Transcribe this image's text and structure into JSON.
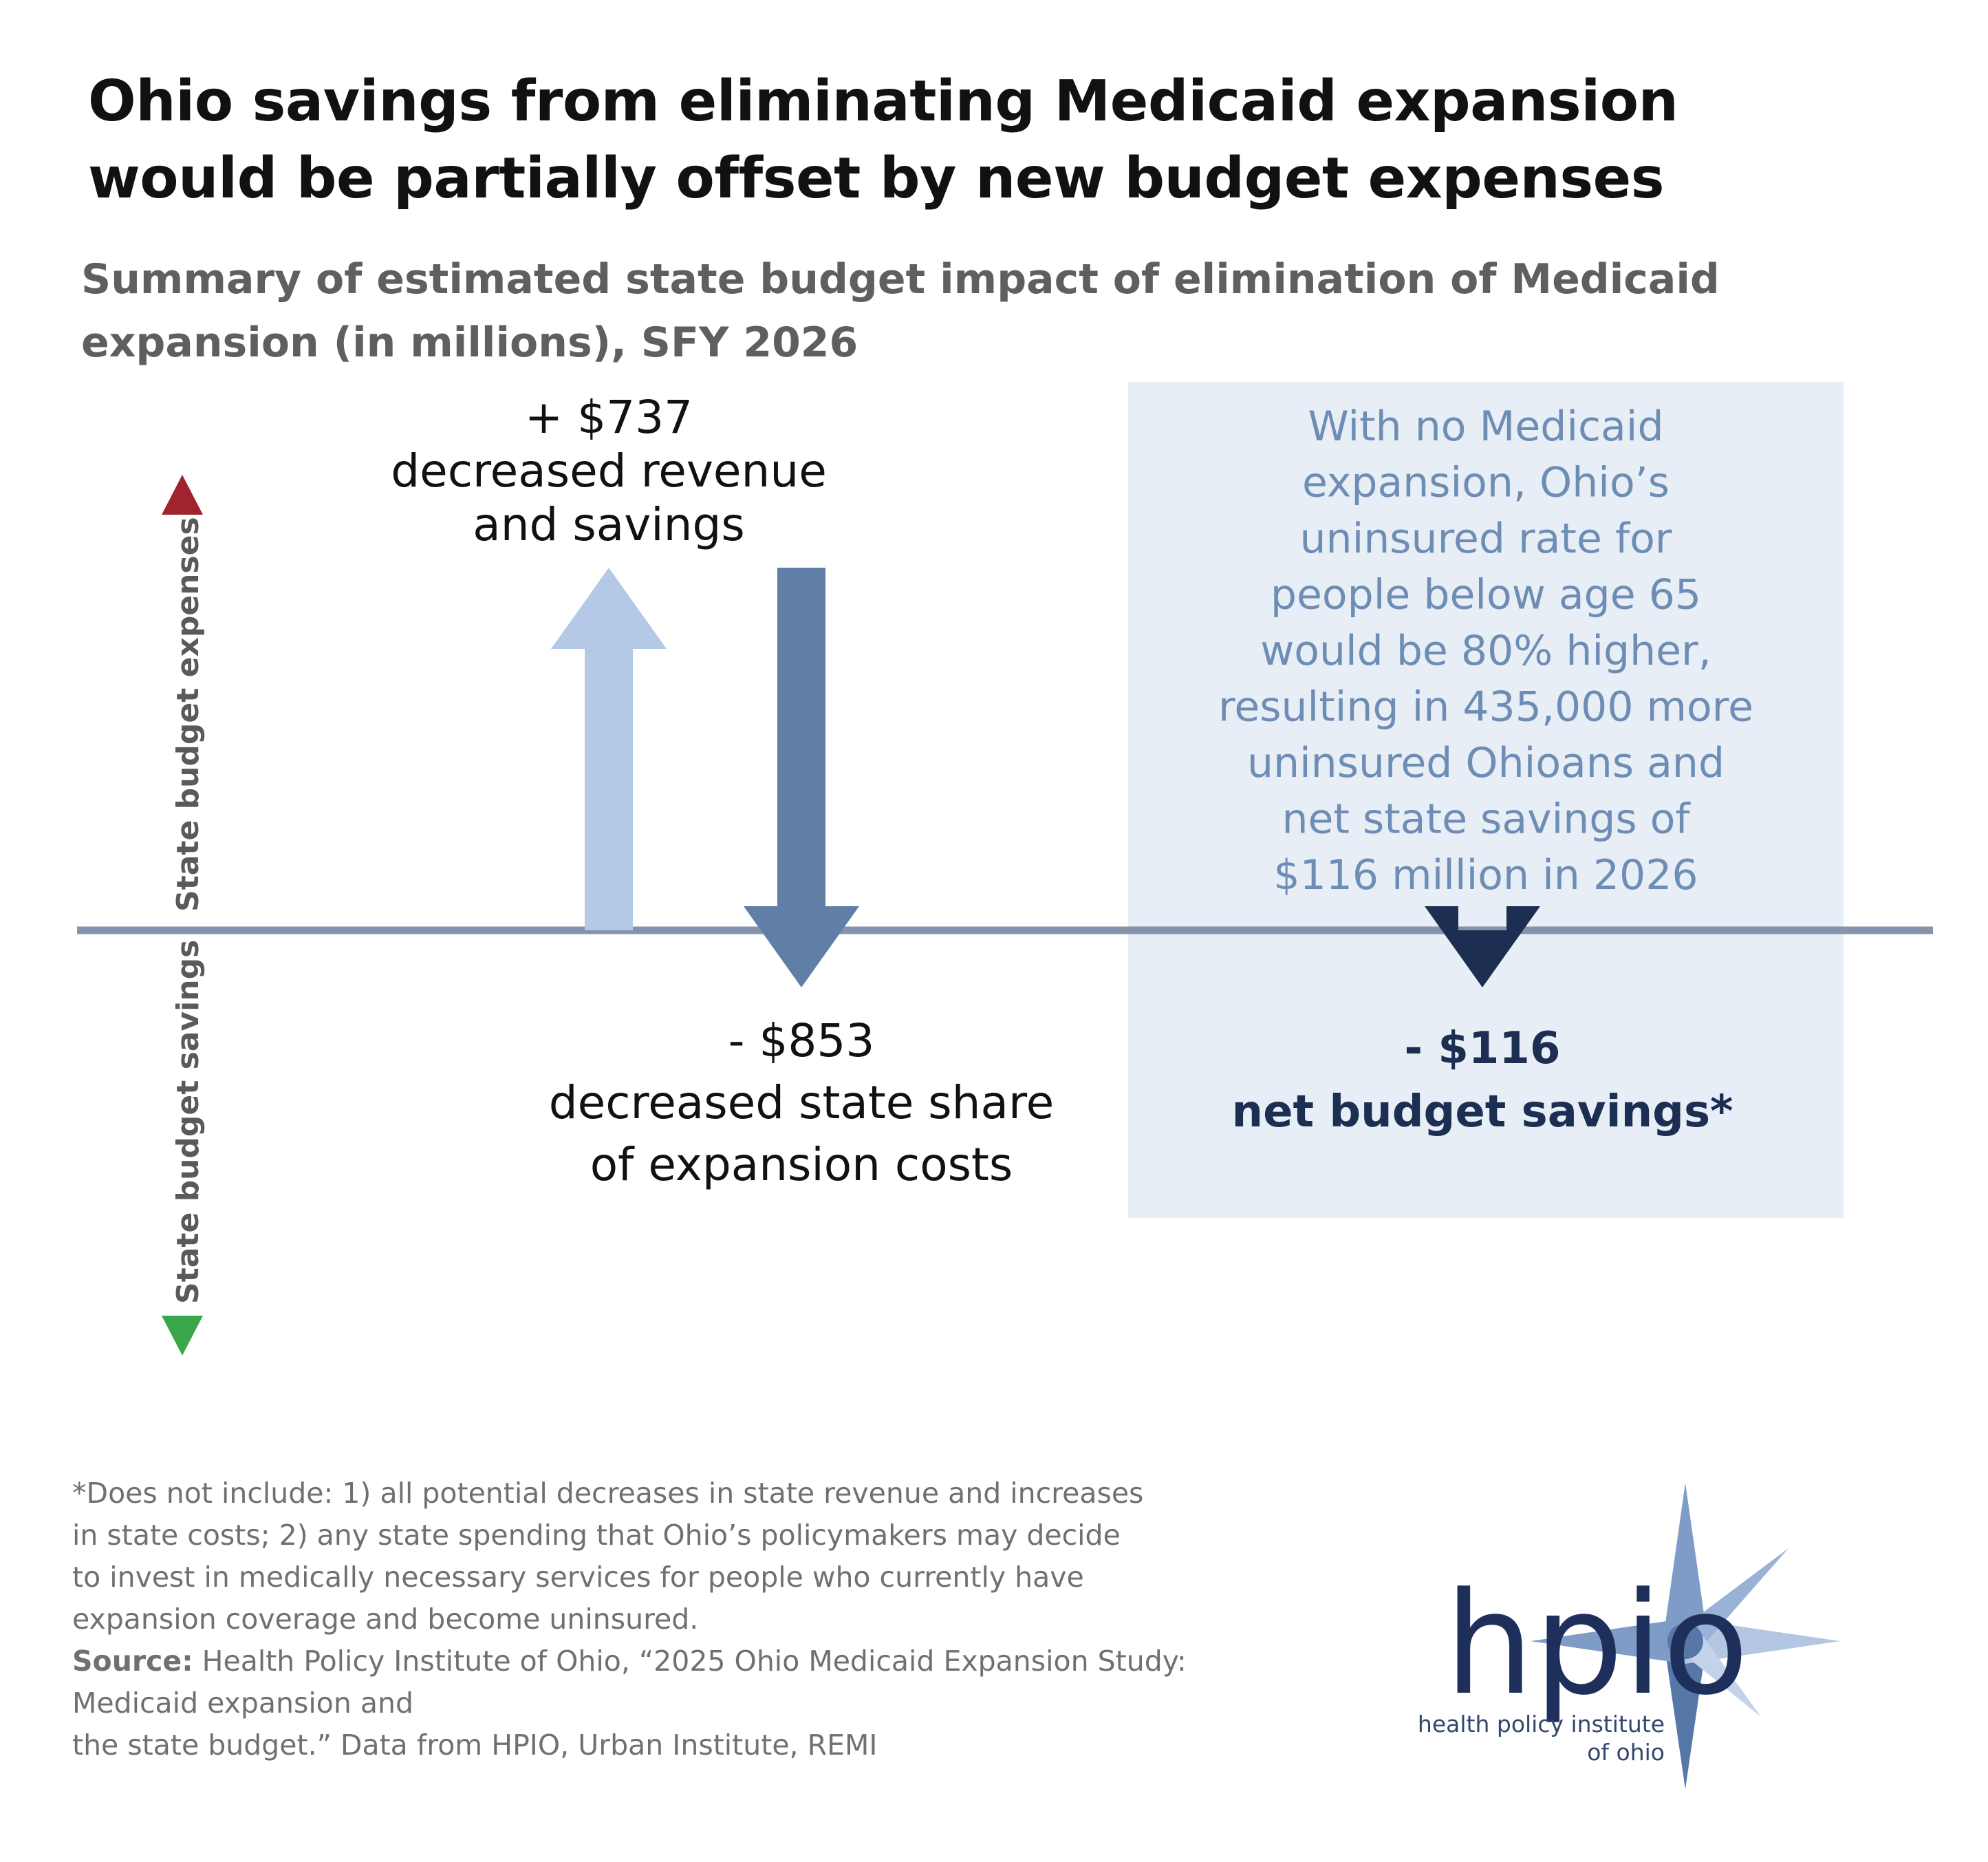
{
  "title_line1": "Ohio savings from eliminating Medicaid expansion",
  "title_line2": "would be partially offset by new budget expenses",
  "subtitle_line1": "Summary of estimated state budget impact of elimination of Medicaid",
  "subtitle_line2": "expansion (in millions), SFY 2026",
  "chart_data": {
    "type": "waterfall",
    "unit": "millions",
    "y_axis_labels": {
      "up": "State budget expenses",
      "down": "State budget savings"
    },
    "items": [
      {
        "value": 737,
        "value_label": "+ $737",
        "label_lines": [
          "decreased revenue",
          "and savings"
        ],
        "color": "#b3c9e6"
      },
      {
        "value": -853,
        "value_label": "- $853",
        "label_lines": [
          "decreased state share",
          "of expansion costs"
        ],
        "color": "#5f7fa6"
      },
      {
        "value": -116,
        "value_label": "- $116",
        "label_lines": [
          "net budget savings*"
        ],
        "color": "#1c2e52"
      }
    ],
    "callout_lines": [
      "With no Medicaid",
      "expansion, Ohio’s",
      "uninsured rate for",
      "people below age 65",
      "would be 80% higher,",
      "resulting in 435,000 more",
      "uninsured Ohioans and",
      "net state savings of",
      "$116 million in 2026"
    ],
    "colors": {
      "axis": "#8593ab",
      "callout_bg": "#e8eef6",
      "callout_text": "#6e8db5",
      "up_marker": "#a0242e",
      "down_marker": "#39a74a"
    }
  },
  "footnote_lines": [
    "*Does not include: 1) all potential decreases in state revenue and increases",
    "in state costs; 2) any state spending that Ohio’s policymakers may decide",
    "to invest in medically necessary services for people who currently have",
    "expansion coverage and become uninsured."
  ],
  "source_label": "Source:",
  "source_lines": [
    " Health Policy Institute of Ohio, “2025 Ohio Medicaid Expansion Study:",
    "Medicaid expansion and",
    "the state budget.” Data from HPIO, Urban Institute, REMI"
  ],
  "logo": {
    "wordmark": "hpio",
    "tagline_line1": "health policy institute",
    "tagline_line2": "of ohio",
    "icon": "compass-star-icon"
  }
}
